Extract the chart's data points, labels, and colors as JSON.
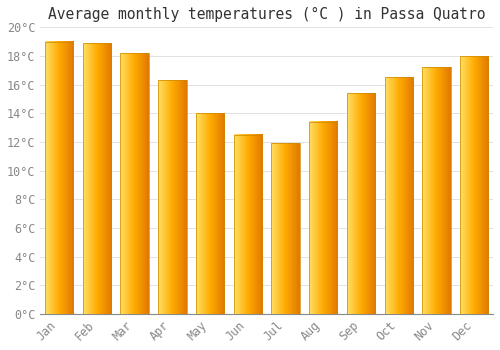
{
  "title": "Average monthly temperatures (°C ) in Passa Quatro",
  "months": [
    "Jan",
    "Feb",
    "Mar",
    "Apr",
    "May",
    "Jun",
    "Jul",
    "Aug",
    "Sep",
    "Oct",
    "Nov",
    "Dec"
  ],
  "values": [
    19.0,
    18.9,
    18.2,
    16.3,
    14.0,
    12.5,
    11.9,
    13.4,
    15.4,
    16.5,
    17.2,
    18.0
  ],
  "bar_color_left": "#FFD966",
  "bar_color_main": "#FFA500",
  "bar_color_right": "#E08000",
  "ylim": [
    0,
    20
  ],
  "yticks": [
    0,
    2,
    4,
    6,
    8,
    10,
    12,
    14,
    16,
    18,
    20
  ],
  "ytick_labels": [
    "0°C",
    "2°C",
    "4°C",
    "6°C",
    "8°C",
    "10°C",
    "12°C",
    "14°C",
    "16°C",
    "18°C",
    "20°C"
  ],
  "background_color": "#ffffff",
  "grid_color": "#dddddd",
  "title_fontsize": 10.5,
  "tick_fontsize": 8.5,
  "tick_color": "#888888",
  "bar_width": 0.75
}
